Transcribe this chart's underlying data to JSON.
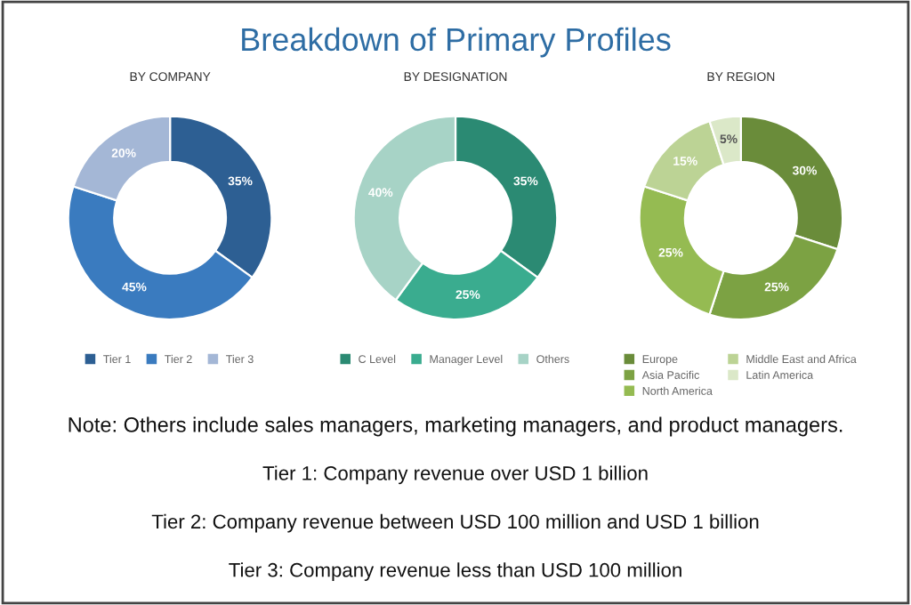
{
  "chart_data": [
    {
      "type": "donut",
      "title": "BY COMPANY",
      "categories": [
        "Tier 1",
        "Tier 2",
        "Tier 3"
      ],
      "values": [
        35,
        45,
        20
      ],
      "value_labels": [
        "35%",
        "45%",
        "20%"
      ],
      "colors": [
        "#2d5f93",
        "#3a7bbf",
        "#a4b7d6"
      ],
      "legend": "bottom",
      "annotations": [
        "Breakdown of Primary Profiles"
      ]
    },
    {
      "type": "donut",
      "title": "BY DESIGNATION",
      "categories": [
        "C Level",
        "Manager Level",
        "Others"
      ],
      "values": [
        35,
        25,
        40
      ],
      "value_labels": [
        "35%",
        "25%",
        "40%"
      ],
      "colors": [
        "#2b8a73",
        "#3aac8f",
        "#a7d3c6"
      ],
      "legend": "bottom"
    },
    {
      "type": "donut",
      "title": "BY REGION",
      "categories": [
        "Europe",
        "Asia Pacific",
        "North America",
        "Middle East and Africa",
        "Latin America"
      ],
      "values": [
        30,
        25,
        25,
        15,
        5
      ],
      "value_labels": [
        "30%",
        "25%",
        "25%",
        "15%",
        "5%"
      ],
      "colors": [
        "#6a8c3a",
        "#7ca243",
        "#95bb52",
        "#bcd395",
        "#dbe8c8"
      ],
      "legend": "bottom",
      "annotations": [
        "Note: Others include sales managers, marketing managers, and product managers.",
        "Tier 1: Company revenue over USD 1 billion",
        "Tier 2: Company revenue between USD 100 million and USD 1 billion",
        "Tier 3: Company revenue less than USD 100 million"
      ]
    }
  ]
}
